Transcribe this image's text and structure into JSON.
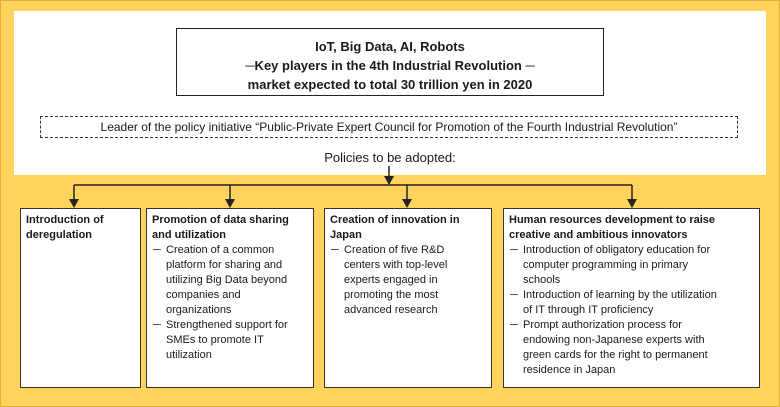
{
  "title": {
    "line1": "IoT, Big Data, AI, Robots",
    "line2": "─Key players in the 4th Industrial Revolution ─",
    "line3": "market expected to total 30 trillion yen in 2020"
  },
  "leader": "Leader of the policy initiative “Public-Private Expert Council for Promotion of the Fourth Industrial Revolution”",
  "policies_label": "Policies to be adopted:",
  "dash": "─",
  "columns": [
    {
      "heading": [
        "Introduction of",
        "deregulation"
      ],
      "items": []
    },
    {
      "heading": [
        "Promotion of data sharing",
        "and utilization"
      ],
      "items": [
        [
          "Creation of a common",
          "platform for sharing and",
          "utilizing Big Data beyond",
          "companies and",
          "organizations"
        ],
        [
          "Strengthened support for",
          "SMEs to promote IT",
          "utilization"
        ]
      ]
    },
    {
      "heading": [
        "Creation of innovation in",
        "Japan"
      ],
      "items": [
        [
          "Creation of five R&D",
          "centers with top-level",
          "experts engaged in",
          "promoting the most",
          "advanced research"
        ]
      ]
    },
    {
      "heading": [
        "Human resources development to raise",
        "creative and ambitious innovators"
      ],
      "items": [
        [
          "Introduction of obligatory education for",
          "computer programming in primary",
          "schools"
        ],
        [
          "Introduction of learning by the utilization",
          "of IT through IT proficiency"
        ],
        [
          "Prompt authorization process for",
          "endowing non-Japanese experts with",
          "green cards for the right to permanent",
          "residence in Japan"
        ]
      ]
    }
  ]
}
